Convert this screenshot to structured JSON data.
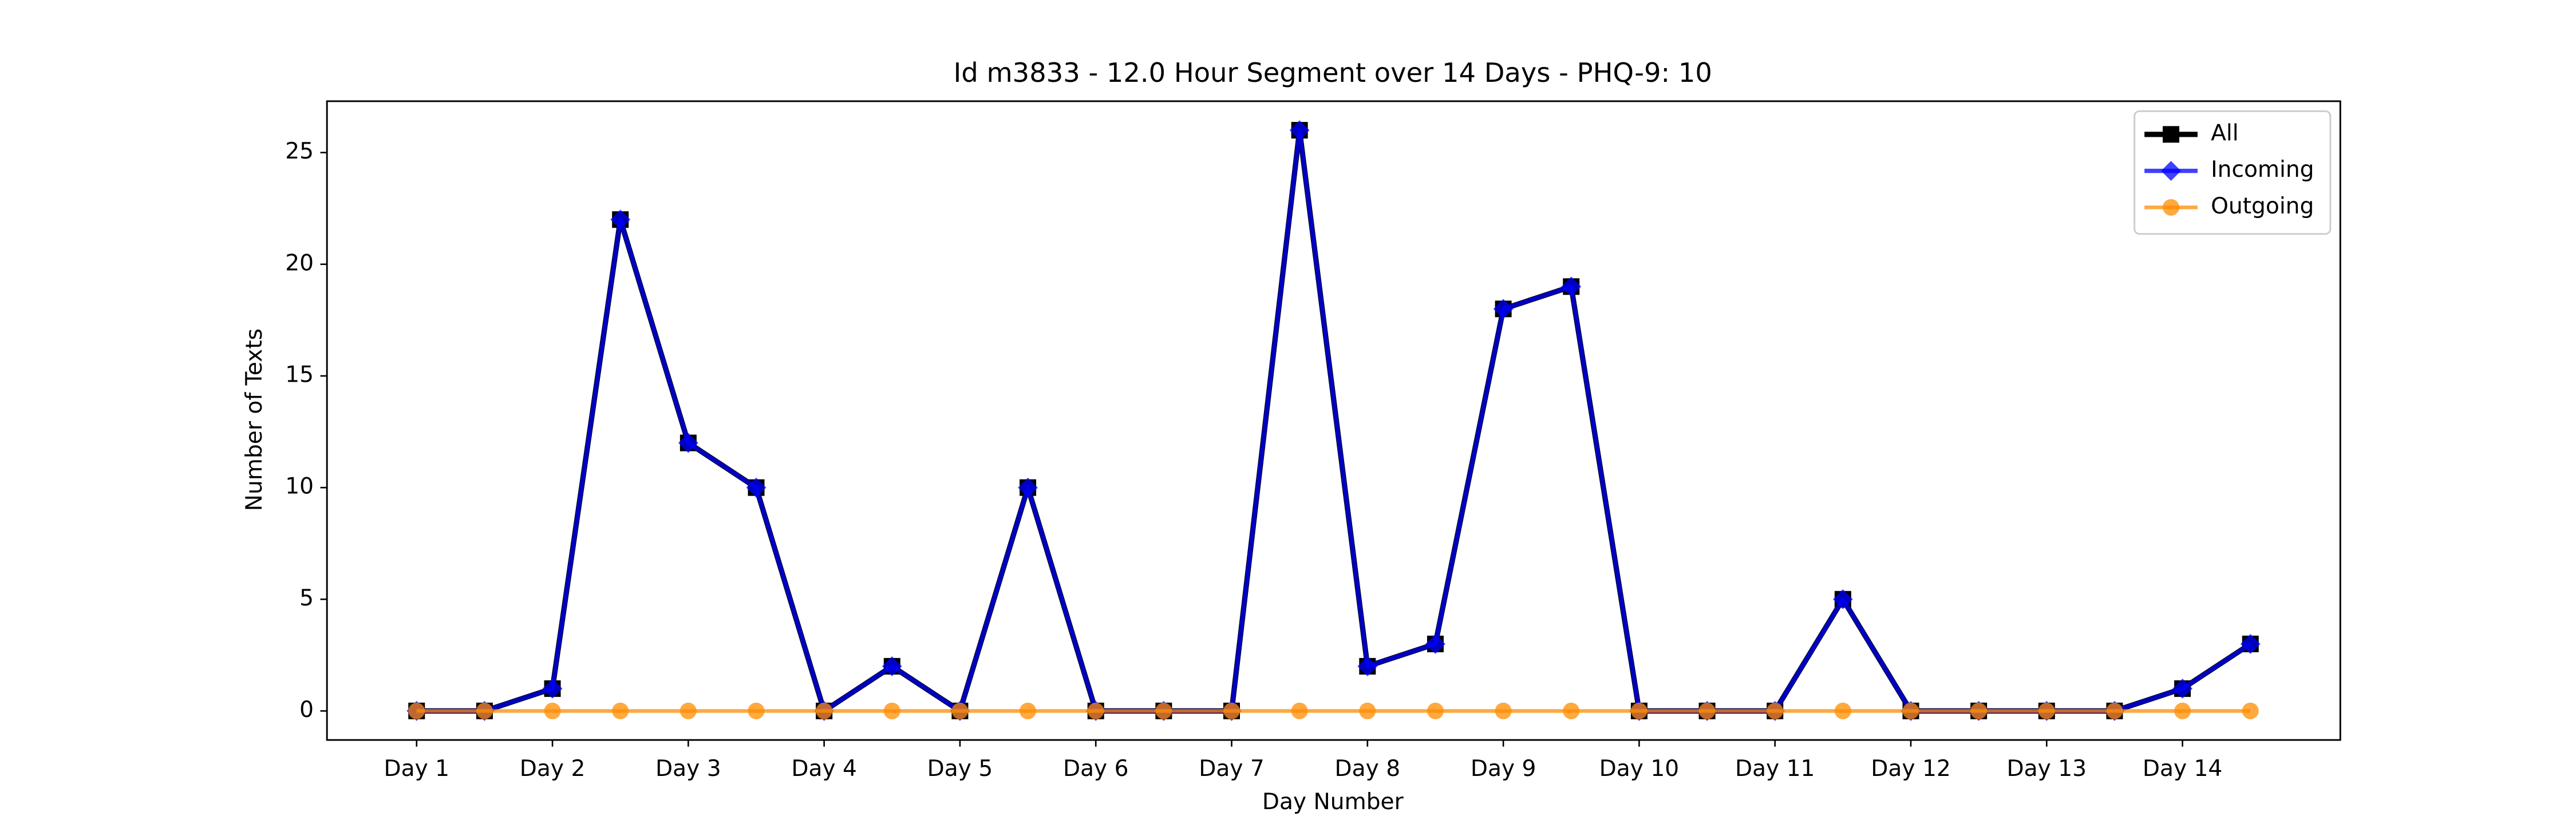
{
  "chart_data": {
    "type": "line",
    "title": "Id m3833 - 12.0 Hour Segment over 14 Days - PHQ-9: 10",
    "xlabel": "Day Number",
    "ylabel": "Number of Texts",
    "categories": [
      "Day 1",
      null,
      "Day 2",
      null,
      "Day 3",
      null,
      "Day 4",
      null,
      "Day 5",
      null,
      "Day 6",
      null,
      "Day 7",
      null,
      "Day 8",
      null,
      "Day 9",
      null,
      "Day 10",
      null,
      "Day 11",
      null,
      "Day 12",
      null,
      "Day 13",
      null,
      "Day 14",
      null
    ],
    "series": [
      {
        "name": "All",
        "color": "#000000",
        "marker": "square",
        "values": [
          0,
          0,
          1,
          22,
          12,
          10,
          0,
          2,
          0,
          10,
          0,
          0,
          0,
          26,
          2,
          3,
          18,
          19,
          0,
          0,
          0,
          5,
          0,
          0,
          0,
          0,
          1,
          3
        ]
      },
      {
        "name": "Incoming",
        "color": "#0000ff",
        "marker": "diamond",
        "values": [
          0,
          0,
          1,
          22,
          12,
          10,
          0,
          2,
          0,
          10,
          0,
          0,
          0,
          26,
          2,
          3,
          18,
          19,
          0,
          0,
          0,
          5,
          0,
          0,
          0,
          0,
          1,
          3
        ]
      },
      {
        "name": "Outgoing",
        "color": "#ff8c00",
        "marker": "circle",
        "values": [
          0,
          0,
          0,
          0,
          0,
          0,
          0,
          0,
          0,
          0,
          0,
          0,
          0,
          0,
          0,
          0,
          0,
          0,
          0,
          0,
          0,
          0,
          0,
          0,
          0,
          0,
          0,
          0
        ]
      }
    ],
    "ylim": [
      -1.3,
      27.3
    ],
    "yticks": [
      0,
      5,
      10,
      15,
      20,
      25
    ],
    "legend": "upper right",
    "grid": false
  }
}
